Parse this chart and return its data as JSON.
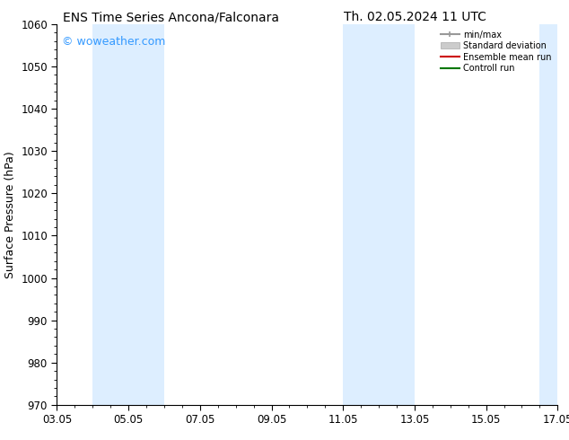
{
  "title_left": "ENS Time Series Ancona/Falconara",
  "title_right": "Th. 02.05.2024 11 UTC",
  "ylabel": "Surface Pressure (hPa)",
  "ylim": [
    970,
    1060
  ],
  "yticks": [
    970,
    980,
    990,
    1000,
    1010,
    1020,
    1030,
    1040,
    1050,
    1060
  ],
  "xtick_labels": [
    "03.05",
    "05.05",
    "07.05",
    "09.05",
    "11.05",
    "13.05",
    "15.05",
    "17.05"
  ],
  "xtick_positions": [
    0,
    2,
    4,
    6,
    8,
    10,
    12,
    14
  ],
  "shaded_bands": [
    {
      "x_start": 1.0,
      "x_end": 3.0
    },
    {
      "x_start": 8.0,
      "x_end": 10.0
    },
    {
      "x_start": 13.5,
      "x_end": 14.0
    }
  ],
  "band_color": "#ddeeff",
  "watermark_text": "© woweather.com",
  "watermark_color": "#3399ff",
  "legend_entries": [
    {
      "label": "min/max",
      "color": "#999999",
      "lw": 1.5
    },
    {
      "label": "Standard deviation",
      "color": "#cccccc",
      "lw": 6
    },
    {
      "label": "Ensemble mean run",
      "color": "#cc0000",
      "lw": 1.5
    },
    {
      "label": "Controll run",
      "color": "#007700",
      "lw": 1.5
    }
  ],
  "bg_color": "#ffffff",
  "title_fontsize": 10,
  "axis_label_fontsize": 9,
  "tick_fontsize": 8.5,
  "watermark_fontsize": 9
}
